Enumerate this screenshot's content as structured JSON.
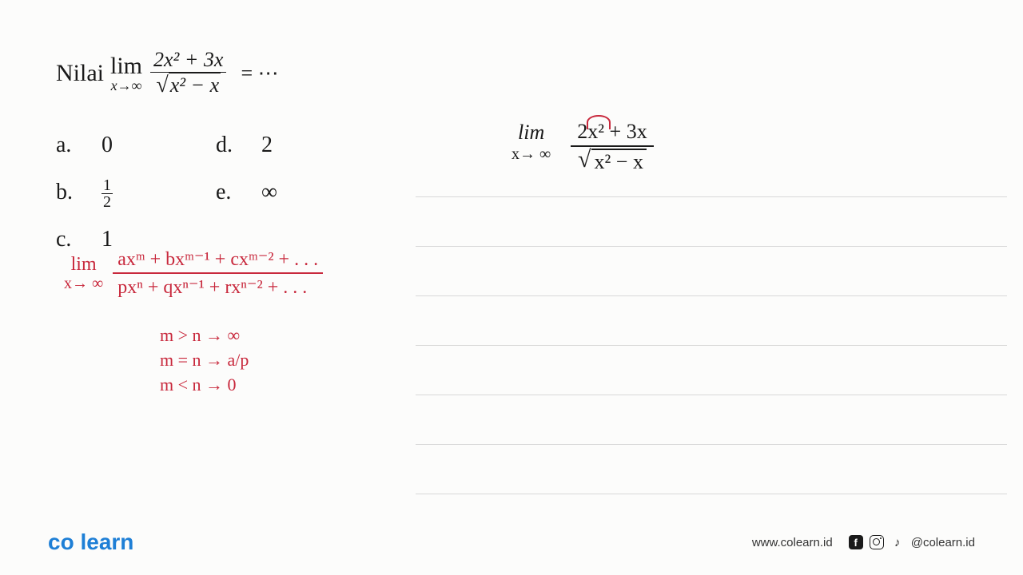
{
  "problem": {
    "label": "Nilai",
    "limit_top": "lim",
    "limit_bottom": "x→∞",
    "numerator": "2x² + 3x",
    "denominator_inside_sqrt": "x² − x",
    "equals": "= ⋯"
  },
  "options": {
    "a": {
      "label": "a.",
      "value": "0"
    },
    "b": {
      "label": "b.",
      "num": "1",
      "den": "2"
    },
    "c": {
      "label": "c.",
      "value": "1"
    },
    "d": {
      "label": "d.",
      "value": "2"
    },
    "e": {
      "label": "e.",
      "value": "∞"
    }
  },
  "red_formula": {
    "limit_top": "lim",
    "limit_bottom": "x→ ∞",
    "numerator": "axᵐ + bxᵐ⁻¹ + cxᵐ⁻² + . . .",
    "denominator": "pxⁿ + qxⁿ⁻¹ + rxⁿ⁻² + . . ."
  },
  "red_rules": {
    "rule1": "m > n → ∞",
    "rule2": "m = n → a/p",
    "rule3": "m < n → 0"
  },
  "black_work": {
    "limit_top": "lim",
    "limit_bottom": "x→ ∞",
    "numerator": "2x² + 3x",
    "den_inside_sqrt": "x² − x"
  },
  "footer": {
    "logo_co": "co",
    "logo_learn": "learn",
    "website": "www.colearn.id",
    "handle": "@colearn.id"
  },
  "colors": {
    "red": "#c8283c",
    "blue": "#1e7fd6",
    "orange": "#f59525",
    "text": "#1a1a1a",
    "bg": "#fcfcfb",
    "rule": "#d8d8d8"
  }
}
